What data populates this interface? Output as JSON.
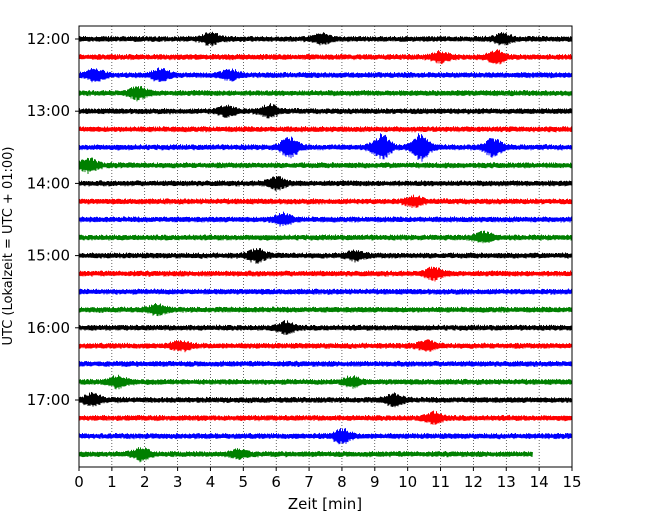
{
  "chart_data": {
    "type": "line",
    "subtype": "helicorder",
    "xlabel": "Zeit  [min]",
    "ylabel": "UTC (Lokalzeit = UTC + 01:00)",
    "xlim": [
      0,
      15
    ],
    "x_ticks": [
      0,
      1,
      2,
      3,
      4,
      5,
      6,
      7,
      8,
      9,
      10,
      11,
      12,
      13,
      14,
      15
    ],
    "y_tick_labels": [
      "12:00",
      "13:00",
      "14:00",
      "15:00",
      "16:00",
      "17:00"
    ],
    "grid": "vertical dotted at each minute",
    "line_colors": [
      "#000000",
      "#ff0000",
      "#0000ff",
      "#008000"
    ],
    "traces": [
      {
        "start": "12:00",
        "end_min": 15,
        "color": "#000000",
        "events": [
          {
            "t": 4.0,
            "amp": 1.6
          },
          {
            "t": 7.4,
            "amp": 1.3
          },
          {
            "t": 12.9,
            "amp": 1.4
          }
        ]
      },
      {
        "start": "12:15",
        "end_min": 15,
        "color": "#ff0000",
        "events": [
          {
            "t": 11.0,
            "amp": 1.3
          },
          {
            "t": 12.7,
            "amp": 1.6
          }
        ]
      },
      {
        "start": "12:30",
        "end_min": 15,
        "color": "#0000ff",
        "events": [
          {
            "t": 0.5,
            "amp": 1.6
          },
          {
            "t": 2.5,
            "amp": 1.8
          },
          {
            "t": 4.6,
            "amp": 1.3
          }
        ]
      },
      {
        "start": "12:45",
        "end_min": 15,
        "color": "#008000",
        "events": [
          {
            "t": 1.8,
            "amp": 1.6
          }
        ]
      },
      {
        "start": "13:00",
        "end_min": 15,
        "color": "#000000",
        "events": [
          {
            "t": 4.5,
            "amp": 1.4
          },
          {
            "t": 5.8,
            "amp": 1.6
          }
        ]
      },
      {
        "start": "13:15",
        "end_min": 15,
        "color": "#ff0000",
        "events": []
      },
      {
        "start": "13:30",
        "end_min": 15,
        "color": "#0000ff",
        "events": [
          {
            "t": 6.4,
            "amp": 2.8
          },
          {
            "t": 9.2,
            "amp": 3.6
          },
          {
            "t": 10.4,
            "amp": 4.0
          },
          {
            "t": 12.6,
            "amp": 2.4
          }
        ]
      },
      {
        "start": "13:45",
        "end_min": 15,
        "color": "#008000",
        "events": [
          {
            "t": 0.3,
            "amp": 1.8
          }
        ]
      },
      {
        "start": "14:00",
        "end_min": 15,
        "color": "#000000",
        "events": [
          {
            "t": 6.0,
            "amp": 1.6
          }
        ]
      },
      {
        "start": "14:15",
        "end_min": 15,
        "color": "#ff0000",
        "events": [
          {
            "t": 10.2,
            "amp": 1.3
          }
        ]
      },
      {
        "start": "14:30",
        "end_min": 15,
        "color": "#0000ff",
        "events": [
          {
            "t": 6.2,
            "amp": 1.6
          }
        ]
      },
      {
        "start": "14:45",
        "end_min": 15,
        "color": "#008000",
        "events": [
          {
            "t": 12.3,
            "amp": 1.4
          }
        ]
      },
      {
        "start": "15:00",
        "end_min": 15,
        "color": "#000000",
        "events": [
          {
            "t": 5.4,
            "amp": 1.7
          },
          {
            "t": 8.4,
            "amp": 1.3
          }
        ]
      },
      {
        "start": "15:15",
        "end_min": 15,
        "color": "#ff0000",
        "events": [
          {
            "t": 10.8,
            "amp": 1.5
          }
        ]
      },
      {
        "start": "15:30",
        "end_min": 15,
        "color": "#0000ff",
        "events": []
      },
      {
        "start": "15:45",
        "end_min": 15,
        "color": "#008000",
        "events": [
          {
            "t": 2.4,
            "amp": 1.3
          }
        ]
      },
      {
        "start": "16:00",
        "end_min": 15,
        "color": "#000000",
        "events": [
          {
            "t": 6.3,
            "amp": 1.6
          }
        ]
      },
      {
        "start": "16:15",
        "end_min": 15,
        "color": "#ff0000",
        "events": [
          {
            "t": 3.1,
            "amp": 1.3
          },
          {
            "t": 10.6,
            "amp": 1.2
          }
        ]
      },
      {
        "start": "16:30",
        "end_min": 15,
        "color": "#0000ff",
        "events": []
      },
      {
        "start": "16:45",
        "end_min": 15,
        "color": "#008000",
        "events": [
          {
            "t": 1.2,
            "amp": 1.6
          },
          {
            "t": 8.3,
            "amp": 1.3
          }
        ]
      },
      {
        "start": "17:00",
        "end_min": 15,
        "color": "#000000",
        "events": [
          {
            "t": 0.4,
            "amp": 1.6
          },
          {
            "t": 9.6,
            "amp": 1.6
          }
        ]
      },
      {
        "start": "17:15",
        "end_min": 15,
        "color": "#ff0000",
        "events": [
          {
            "t": 10.8,
            "amp": 1.5
          }
        ]
      },
      {
        "start": "17:30",
        "end_min": 15,
        "color": "#0000ff",
        "events": [
          {
            "t": 8.0,
            "amp": 1.8
          }
        ]
      },
      {
        "start": "17:45",
        "end_min": 13.8,
        "color": "#008000",
        "events": [
          {
            "t": 1.9,
            "amp": 1.6
          },
          {
            "t": 4.9,
            "amp": 1.2
          }
        ]
      }
    ]
  }
}
